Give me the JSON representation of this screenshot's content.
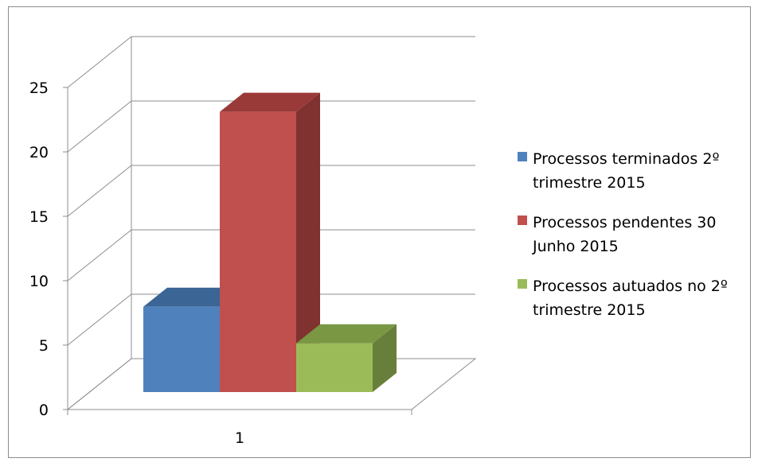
{
  "chart_data": {
    "type": "bar",
    "style": "3d-clustered-column",
    "categories": [
      "1"
    ],
    "series": [
      {
        "name": "Processos terminados 2º trimestre 2015",
        "values": [
          7
        ],
        "color": "#4F81BD",
        "top_color": "#3A6595",
        "side_color": "#385D8A"
      },
      {
        "name": "Processos pendentes 30 Junho 2015",
        "values": [
          23
        ],
        "color": "#C0504D",
        "top_color": "#9A3A38",
        "side_color": "#7F3230"
      },
      {
        "name": "Processos autuados no 2º trimestre 2015",
        "values": [
          4
        ],
        "color": "#9BBB59",
        "top_color": "#7A9744",
        "side_color": "#677F3A"
      }
    ],
    "y_ticks": [
      "0",
      "5",
      "10",
      "15",
      "20",
      "25"
    ],
    "ylim": [
      0,
      25
    ],
    "grid": true,
    "legend_position": "right",
    "legend_lines": [
      [
        "Processos terminados 2º",
        "trimestre 2015"
      ],
      [
        "Processos pendentes 30",
        "Junho 2015"
      ],
      [
        "Processos autuados no 2º",
        "trimestre 2015"
      ]
    ]
  }
}
